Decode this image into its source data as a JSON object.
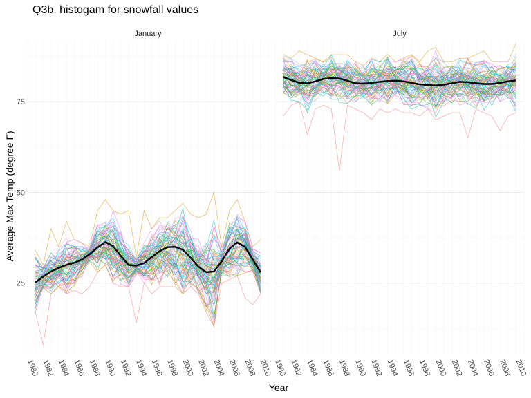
{
  "chart_data": {
    "type": "line",
    "title": "Q3b. histogam for snowfall values",
    "xlabel": "Year",
    "ylabel": "Average Max Temp (degree F)",
    "x_ticks": [
      "1980",
      "1982",
      "1984",
      "1986",
      "1988",
      "1990",
      "1992",
      "1994",
      "1996",
      "1998",
      "2000",
      "2002",
      "2004",
      "2006",
      "2008",
      "2010"
    ],
    "y_ticks": [
      25,
      50,
      75
    ],
    "xlim": [
      1980,
      2011
    ],
    "ylim": [
      5.5,
      92
    ],
    "grid": true,
    "legend": "none",
    "facets": [
      {
        "name": "January",
        "smooth": {
          "name": "smooth trend",
          "x": [
            1981,
            1982,
            1983,
            1984,
            1985,
            1986,
            1987,
            1988,
            1989,
            1990,
            1991,
            1992,
            1993,
            1994,
            1995,
            1996,
            1997,
            1998,
            1999,
            2000,
            2001,
            2002,
            2003,
            2004,
            2005,
            2006,
            2007,
            2008,
            2009,
            2010
          ],
          "y": [
            25.2,
            26.8,
            28.2,
            29.2,
            30.0,
            30.6,
            31.5,
            33.0,
            34.8,
            36.3,
            35.2,
            32.5,
            30.0,
            29.8,
            30.5,
            32.2,
            33.8,
            34.9,
            35.0,
            34.2,
            32.0,
            29.5,
            28.0,
            28.2,
            31.0,
            34.5,
            36.2,
            35.0,
            31.5,
            28.0
          ]
        },
        "spread": {
          "x": [
            1981,
            1982,
            1983,
            1984,
            1985,
            1986,
            1987,
            1988,
            1989,
            1990,
            1991,
            1992,
            1993,
            1994,
            1995,
            1996,
            1997,
            1998,
            1999,
            2000,
            2001,
            2002,
            2003,
            2004,
            2005,
            2006,
            2007,
            2008,
            2009,
            2010
          ],
          "min": [
            17,
            8,
            22,
            24,
            22,
            23,
            22,
            24,
            28,
            30,
            25,
            24,
            24,
            14,
            25,
            22,
            24,
            24,
            24,
            22,
            24,
            22,
            17,
            13,
            25,
            26,
            27,
            21,
            19,
            22
          ],
          "max": [
            34,
            30,
            40,
            35,
            42,
            37,
            36,
            35,
            45,
            48,
            45,
            44,
            45,
            32,
            45,
            40,
            43,
            43,
            45,
            47,
            44,
            43,
            44,
            50,
            35,
            45,
            48,
            42,
            35,
            37
          ]
        }
      },
      {
        "name": "July",
        "smooth": {
          "name": "smooth trend",
          "x": [
            1981,
            1982,
            1983,
            1984,
            1985,
            1986,
            1987,
            1988,
            1989,
            1990,
            1991,
            1992,
            1993,
            1994,
            1995,
            1996,
            1997,
            1998,
            1999,
            2000,
            2001,
            2002,
            2003,
            2004,
            2005,
            2006,
            2007,
            2008,
            2009,
            2010
          ],
          "y": [
            81.8,
            81.0,
            80.2,
            80.1,
            80.6,
            81.3,
            81.5,
            81.4,
            80.8,
            80.1,
            80.0,
            80.2,
            80.5,
            80.7,
            80.8,
            80.6,
            80.2,
            79.8,
            79.6,
            79.5,
            79.7,
            80.1,
            80.5,
            80.4,
            80.1,
            79.9,
            79.9,
            80.2,
            80.6,
            80.9
          ]
        },
        "spread": {
          "x": [
            1981,
            1982,
            1983,
            1984,
            1985,
            1986,
            1987,
            1988,
            1989,
            1990,
            1991,
            1992,
            1993,
            1994,
            1995,
            1996,
            1997,
            1998,
            1999,
            2000,
            2001,
            2002,
            2003,
            2004,
            2005,
            2006,
            2007,
            2008,
            2009,
            2010
          ],
          "min": [
            71,
            74,
            75,
            66,
            73,
            74,
            73,
            56,
            74,
            73,
            72,
            70,
            73,
            72,
            73,
            72,
            72,
            71,
            73,
            70,
            71,
            72,
            72,
            65,
            73,
            72,
            71,
            67,
            71,
            72
          ],
          "max": [
            88,
            87,
            89,
            88,
            87,
            86,
            88,
            88,
            88,
            86,
            85,
            87,
            86,
            88,
            86,
            87,
            88,
            86,
            89,
            90,
            86,
            86,
            87,
            87,
            88,
            89,
            86,
            86,
            86,
            91
          ]
        }
      }
    ]
  },
  "colors": {
    "smooth_line": "#000000",
    "palette": [
      "#f8766d",
      "#d89000",
      "#a3a500",
      "#39b600",
      "#00bf7d",
      "#00bfc4",
      "#00b0f6",
      "#9590ff",
      "#e76bf3",
      "#ff62bc",
      "#e88dd0",
      "#7fb8e8"
    ]
  }
}
